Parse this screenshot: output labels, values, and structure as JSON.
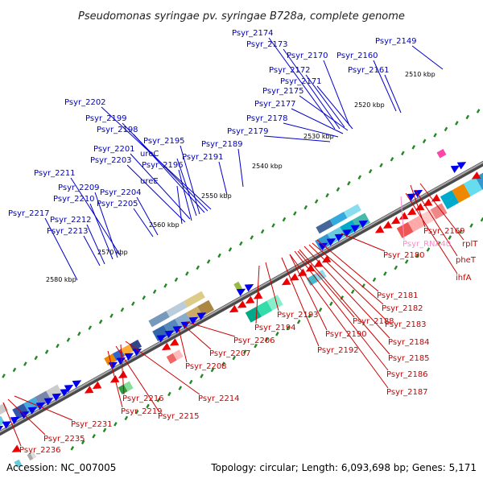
{
  "title": "Pseudomonas syringae pv. syringae B728a, complete genome",
  "footer": {
    "accession": "Accession: NC_007005",
    "topology": "Topology: circular; Length: 6,093,698 bp; Genes: 5,171"
  },
  "colors": {
    "forward_label": "#0000cc",
    "reverse_label": "#cc0000",
    "rna_label": "#ff88cc",
    "forward_gene": "#0000ee",
    "reverse_gene": "#ee0000",
    "backbone": "#777777",
    "tick": "#228822"
  },
  "kbp_labels": [
    "2510 kbp",
    "2520 kbp",
    "2530 kbp",
    "2540 kbp",
    "2550 kbp",
    "2560 kbp",
    "2570 kbp",
    "2580 kbp"
  ],
  "forward_labels": [
    "Psyr_2174",
    "Psyr_2173",
    "Psyr_2172",
    "Psyr_2170",
    "Psyr_2160",
    "Psyr_2149",
    "Psyr_2161",
    "Psyr_2171",
    "Psyr_2175",
    "Psyr_2177",
    "Psyr_2178",
    "Psyr_2179",
    "Psyr_2189",
    "Psyr_2191",
    "Psyr_2202",
    "Psyr_2199",
    "Psyr_2198",
    "Psyr_2195",
    "ureC",
    "Psyr_2201",
    "Psyr_2196",
    "Psyr_2203",
    "ureE",
    "Psyr_2211",
    "Psyr_2209",
    "Psyr_2204",
    "Psyr_2210",
    "Psyr_2205",
    "Psyr_2217",
    "Psyr_2212",
    "Psyr_2213"
  ],
  "reverse_labels": [
    "Psyr_2169",
    "rplT",
    "Psyr_RNA40",
    "pheT",
    "ihfA",
    "Psyr_2180",
    "Psyr_2181",
    "Psyr_2182",
    "Psyr_2183",
    "Psyr_2184",
    "Psyr_2185",
    "Psyr_2186",
    "Psyr_2187",
    "Psyr_2188",
    "Psyr_2190",
    "Psyr_2193",
    "Psyr_2192",
    "Psyr_2194",
    "Psyr_2206",
    "Psyr_2207",
    "Psyr_2208",
    "Psyr_2214",
    "Psyr_2216",
    "Psyr_2215",
    "Psyr_2219",
    "Psyr_2231",
    "Psyr_2235",
    "Psyr_2236"
  ]
}
